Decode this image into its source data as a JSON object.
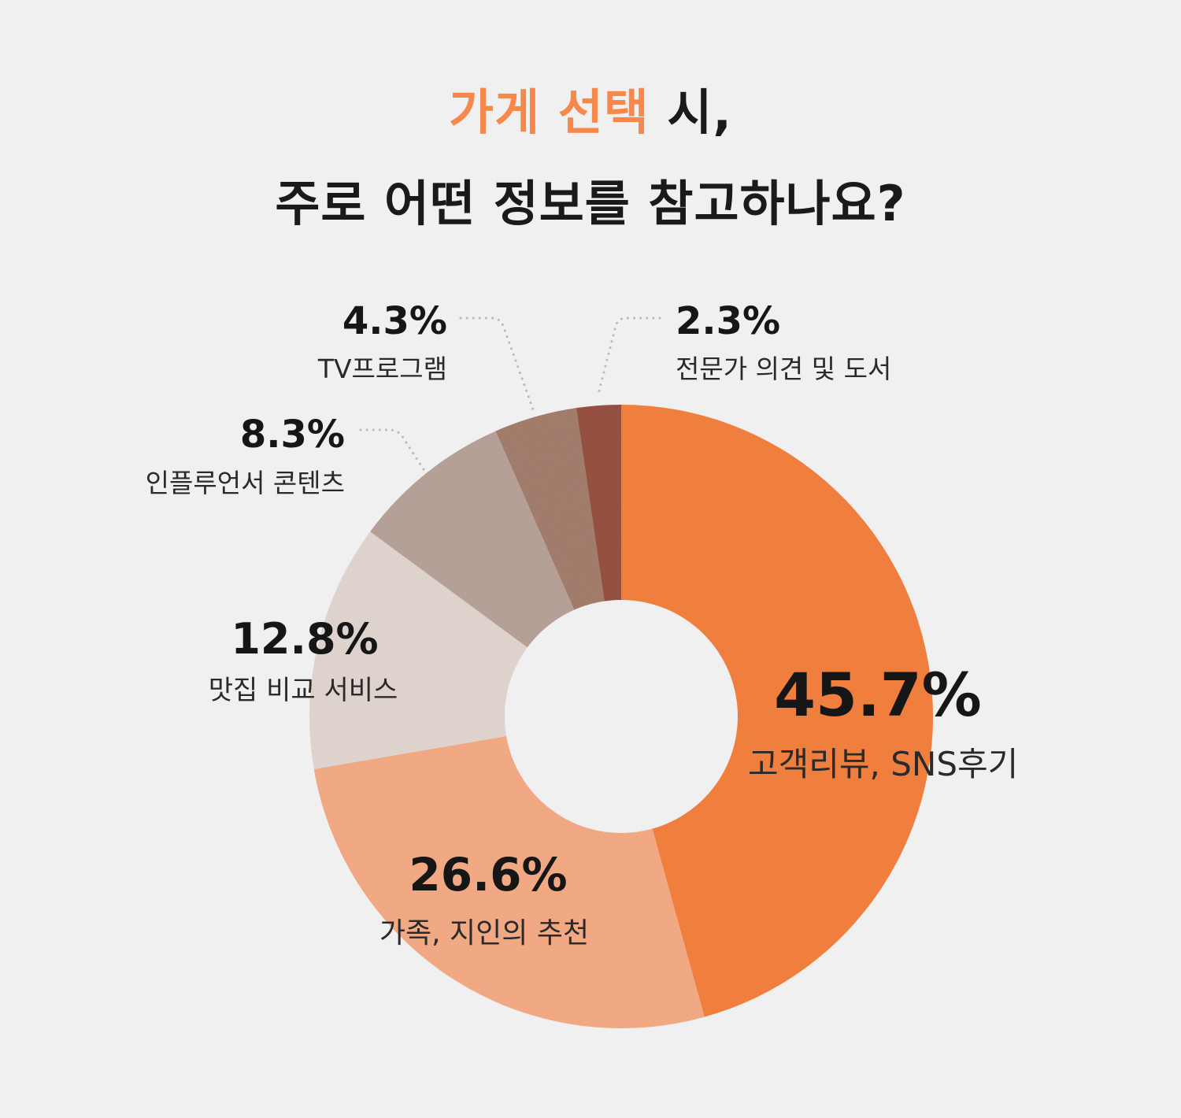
{
  "title": {
    "line1_accent": "가게 선택",
    "line1_rest": " 시,",
    "line2": "주로 어떤 정보를 참고하나요?"
  },
  "colors": {
    "accent": "#f5884a",
    "background": "#f1f0f0"
  },
  "chart_data": {
    "type": "pie",
    "donut": true,
    "title": "가게 선택 시, 주로 어떤 정보를 참고하나요?",
    "unit": "%",
    "slices": [
      {
        "label": "고객리뷰, SNS후기",
        "value": 45.7,
        "display": "45.7%",
        "color": "#fa8443"
      },
      {
        "label": "가족, 지인의 추천",
        "value": 26.6,
        "display": "26.6%",
        "color": "#fbb08a"
      },
      {
        "label": "맛집 비교 서비스",
        "value": 12.8,
        "display": "12.8%",
        "color": "#e8dcd5"
      },
      {
        "label": "인플루언서 콘텐츠",
        "value": 8.3,
        "display": "8.3%",
        "color": "#bca79e"
      },
      {
        "label": "TV프로그램",
        "value": 4.3,
        "display": "4.3%",
        "color": "#a98271"
      },
      {
        "label": "전문가 의견 및 도서",
        "value": 2.3,
        "display": "2.3%",
        "color": "#9b5545"
      }
    ]
  }
}
